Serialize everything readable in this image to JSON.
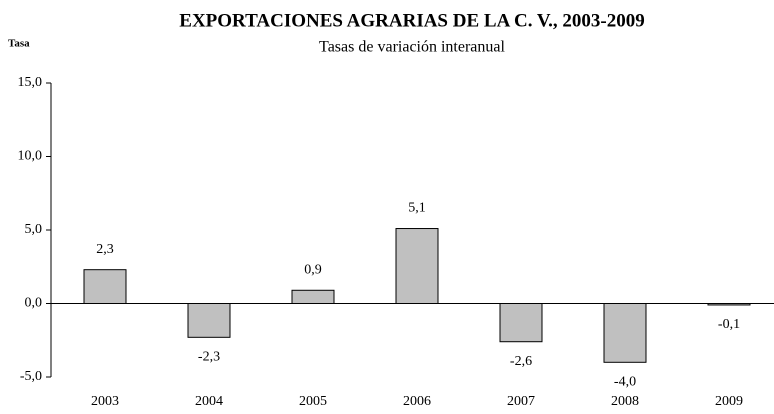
{
  "chart_data": {
    "type": "bar",
    "title": "EXPORTACIONES AGRARIAS DE LA C. V., 2003-2009",
    "subtitle": "Tasas de variación interanual",
    "y_label": "Tasa",
    "categories": [
      "2003",
      "2004",
      "2005",
      "2006",
      "2007",
      "2008",
      "2009"
    ],
    "values": [
      2.3,
      -2.3,
      0.9,
      5.1,
      -2.6,
      -4.0,
      -0.1
    ],
    "value_labels": [
      "2,3",
      "-2,3",
      "0,9",
      "5,1",
      "-2,6",
      "-4,0",
      "-0,1"
    ],
    "color": "#c0c0c0",
    "ylim": [
      -5,
      15
    ],
    "yticks": [
      {
        "value": -5,
        "label": "-5,0"
      },
      {
        "value": 0,
        "label": "0,0"
      },
      {
        "value": 5,
        "label": "5,0"
      },
      {
        "value": 10,
        "label": "10,0"
      },
      {
        "value": 15,
        "label": "15,0"
      }
    ],
    "grid": false
  }
}
